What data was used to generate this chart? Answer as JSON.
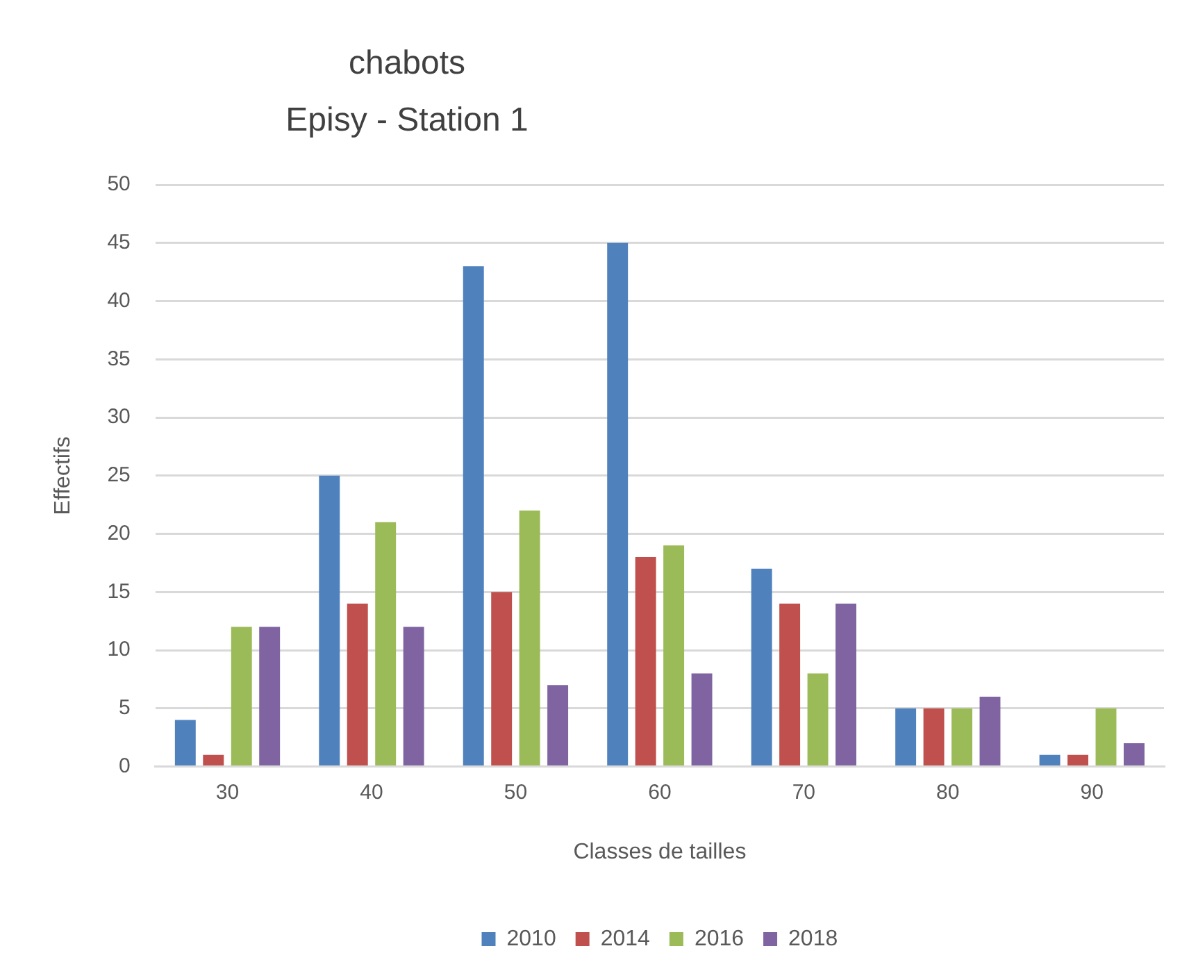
{
  "chart_data": {
    "type": "bar",
    "title": "chabots",
    "subtitle": "Episy - Station 1",
    "xlabel": "Classes de tailles",
    "ylabel": "Effectifs",
    "categories": [
      "30",
      "40",
      "50",
      "60",
      "70",
      "80",
      "90"
    ],
    "series": [
      {
        "name": "2010",
        "color": "#4f81bd",
        "values": [
          4,
          25,
          43,
          45,
          17,
          5,
          1
        ]
      },
      {
        "name": "2014",
        "color": "#c0504d",
        "values": [
          1,
          14,
          15,
          18,
          14,
          5,
          1
        ]
      },
      {
        "name": "2016",
        "color": "#9bbb59",
        "values": [
          12,
          21,
          22,
          19,
          8,
          5,
          5
        ]
      },
      {
        "name": "2018",
        "color": "#8064a2",
        "values": [
          12,
          12,
          7,
          8,
          14,
          6,
          2
        ]
      }
    ],
    "ylim": [
      0,
      50
    ],
    "yticks": [
      0,
      5,
      10,
      15,
      20,
      25,
      30,
      35,
      40,
      45,
      50
    ],
    "grid": "y",
    "legend": "bottom"
  }
}
